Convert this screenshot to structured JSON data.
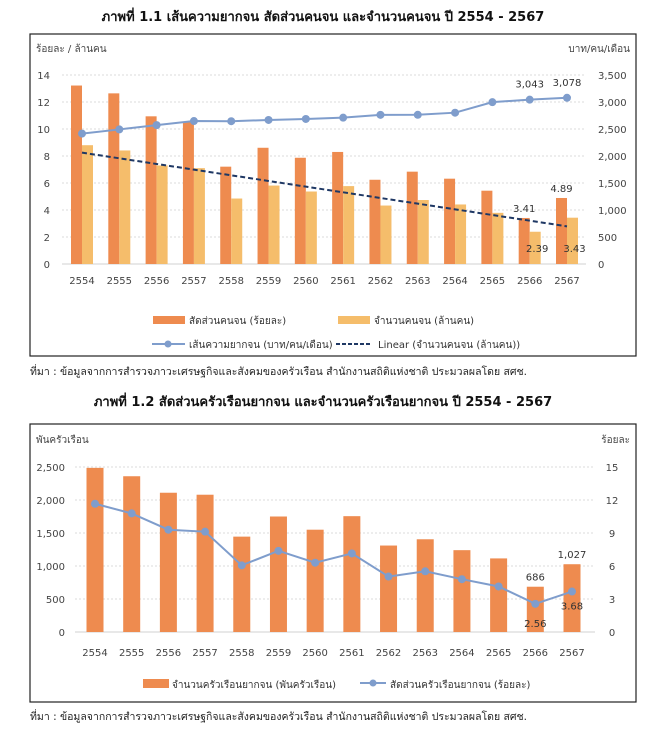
{
  "chart_data": [
    {
      "type": "bar",
      "title": "ภาพที่ 1.1 เส้นความยากจน สัดส่วนคนจน และจำนวนคนจน ปี 2554 - 2567",
      "ylabel_left": "ร้อยละ / ล้านคน",
      "ylabel_right": "บาท/คน/เดือน",
      "ylim_left": [
        0,
        14
      ],
      "yticks_left": [
        "0",
        "2",
        "4",
        "6",
        "8",
        "10",
        "12",
        "14"
      ],
      "ylim_right": [
        0,
        3500
      ],
      "yticks_right": [
        "0",
        "500",
        "1,000",
        "1,500",
        "2,000",
        "2,500",
        "3,000",
        "3,500"
      ],
      "grid": true,
      "legend": "bottom",
      "categories": [
        "2554",
        "2555",
        "2556",
        "2557",
        "2558",
        "2559",
        "2560",
        "2561",
        "2562",
        "2563",
        "2564",
        "2565",
        "2566",
        "2567"
      ],
      "series": [
        {
          "name": "สัดส่วนคนจน (ร้อยละ)",
          "kind": "bar",
          "axis": "left",
          "color": "#EE8B4F",
          "values": [
            13.22,
            12.64,
            10.94,
            10.53,
            7.21,
            8.61,
            7.87,
            8.3,
            6.24,
            6.84,
            6.32,
            5.43,
            3.41,
            4.89
          ],
          "labels": {
            "12": "3.41",
            "13": "4.89"
          }
        },
        {
          "name": "จำนวนคนจน (ล้านคน)",
          "kind": "bar",
          "axis": "left",
          "color": "#F5BD6B",
          "values": [
            8.8,
            8.41,
            7.3,
            7.1,
            4.85,
            5.81,
            5.37,
            5.77,
            4.33,
            4.74,
            4.41,
            3.79,
            2.39,
            3.43
          ],
          "labels": {
            "12": "2.39",
            "13": "3.43"
          }
        },
        {
          "name": "เส้นความยากจน (บาท/คน/เดือน)",
          "kind": "line",
          "axis": "right",
          "color": "#7F9DCC",
          "values": [
            2415,
            2492,
            2572,
            2647,
            2644,
            2667,
            2686,
            2710,
            2762,
            2763,
            2802,
            2997,
            3043,
            3078
          ],
          "labels": {
            "12": "3,043",
            "13": "3,078"
          }
        },
        {
          "name": "Linear (จำนวนคนจน (ล้านคน))",
          "kind": "trendline",
          "axis": "left",
          "color": "#1F3864",
          "values": [
            8.25,
            7.83,
            7.41,
            6.99,
            6.57,
            6.15,
            5.73,
            5.31,
            4.89,
            4.47,
            4.05,
            3.63,
            3.21,
            2.79
          ]
        }
      ],
      "source": "ที่มา :  ข้อมูลจากการสำรวจภาวะเศรษฐกิจและสังคมของครัวเรือน สำนักงานสถิติแห่งชาติ ประมวลผลโดย สศช."
    },
    {
      "type": "bar",
      "title": "ภาพที่ 1.2 สัดส่วนครัวเรือนยากจน และจำนวนครัวเรือนยากจน ปี 2554 - 2567",
      "ylabel_left": "พันครัวเรือน",
      "ylabel_right": "ร้อยละ",
      "ylim_left": [
        0,
        2500
      ],
      "yticks_left": [
        "0",
        "500",
        "1,000",
        "1,500",
        "2,000",
        "2,500"
      ],
      "ylim_right": [
        0,
        15
      ],
      "yticks_right": [
        "0",
        "3",
        "6",
        "9",
        "12",
        "15"
      ],
      "grid": true,
      "legend": "bottom",
      "categories": [
        "2554",
        "2555",
        "2556",
        "2557",
        "2558",
        "2559",
        "2560",
        "2561",
        "2562",
        "2563",
        "2564",
        "2565",
        "2566",
        "2567"
      ],
      "series": [
        {
          "name": "จำนวนครัวเรือนยากจน (พันครัวเรือน)",
          "kind": "bar",
          "axis": "left",
          "color": "#EE8B4F",
          "values": [
            2487,
            2360,
            2110,
            2080,
            1445,
            1750,
            1550,
            1755,
            1310,
            1405,
            1240,
            1115,
            686,
            1027
          ],
          "labels": {
            "12": "686",
            "13": "1,027"
          }
        },
        {
          "name": "สัดส่วนครัวเรือนยากจน (ร้อยละ)",
          "kind": "line",
          "axis": "right",
          "color": "#7F9DCC",
          "values": [
            11.66,
            10.78,
            9.3,
            9.12,
            6.06,
            7.38,
            6.3,
            7.14,
            5.04,
            5.52,
            4.8,
            4.14,
            2.56,
            3.68
          ],
          "labels": {
            "12": "2.56",
            "13": "3.68"
          }
        }
      ],
      "source": "ที่มา :  ข้อมูลจากการสำรวจภาวะเศรษฐกิจและสังคมของครัวเรือน สำนักงานสถิติแห่งชาติ ประมวลผลโดย สศช."
    }
  ]
}
